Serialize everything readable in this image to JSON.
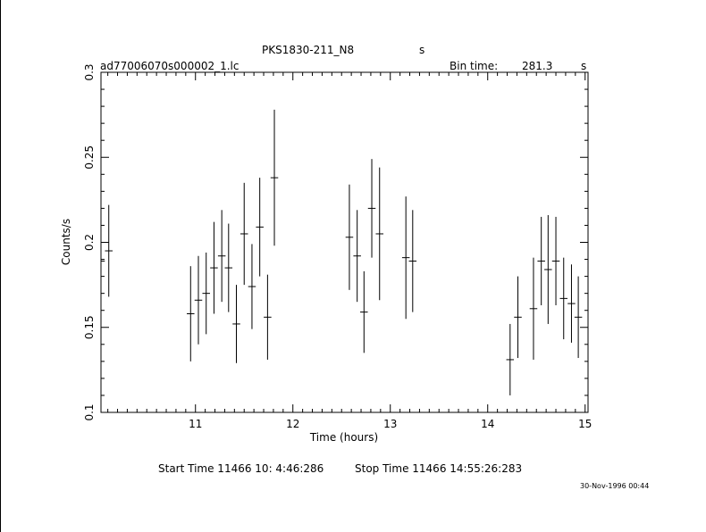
{
  "header": {
    "title": "PKS1830-211_N8",
    "title_unit": "s",
    "filename": "ad77006070s000002_1.lc",
    "bin_label": "Bin time:",
    "bin_value": "281.3",
    "bin_unit": "s"
  },
  "footer": {
    "start_label": "Start Time 11466 10: 4:46:286",
    "stop_label": "Stop Time 11466 14:55:26:283",
    "stamp": "30-Nov-1996 00:44"
  },
  "chart_data": {
    "type": "scatter",
    "xlabel": "Time (hours)",
    "ylabel": "Counts/s",
    "xlim": [
      10.03,
      15.03
    ],
    "ylim": [
      0.1,
      0.3
    ],
    "x_ticks": [
      11,
      12,
      13,
      14,
      15
    ],
    "y_ticks": [
      0.1,
      0.15,
      0.2,
      0.25,
      0.3
    ],
    "y_tick_labels": [
      "0.1",
      "0.15",
      "0.2",
      "0.25",
      "0.3"
    ],
    "grid": false,
    "series": [
      {
        "x": [
          10.03,
          10.11,
          10.95,
          11.03,
          11.11,
          11.19,
          11.27,
          11.34,
          11.42,
          11.5,
          11.58,
          11.66,
          11.74,
          11.81,
          12.58,
          12.66,
          12.73,
          12.81,
          12.89,
          13.16,
          13.23,
          14.23,
          14.31,
          14.47,
          14.55,
          14.62,
          14.7,
          14.78,
          14.86,
          14.93
        ],
        "y": [
          0.189,
          0.195,
          0.158,
          0.166,
          0.17,
          0.185,
          0.192,
          0.185,
          0.152,
          0.205,
          0.174,
          0.209,
          0.156,
          0.238,
          0.203,
          0.192,
          0.159,
          0.22,
          0.205,
          0.191,
          0.189,
          0.131,
          0.156,
          0.161,
          0.189,
          0.184,
          0.189,
          0.167,
          0.164,
          0.156
        ],
        "yerr": [
          0.026,
          0.027,
          0.028,
          0.026,
          0.024,
          0.027,
          0.027,
          0.026,
          0.023,
          0.03,
          0.025,
          0.029,
          0.025,
          0.04,
          0.031,
          0.027,
          0.024,
          0.029,
          0.039,
          0.036,
          0.03,
          0.021,
          0.024,
          0.03,
          0.026,
          0.032,
          0.026,
          0.024,
          0.023,
          0.024
        ],
        "xerr": 0.039
      }
    ]
  }
}
